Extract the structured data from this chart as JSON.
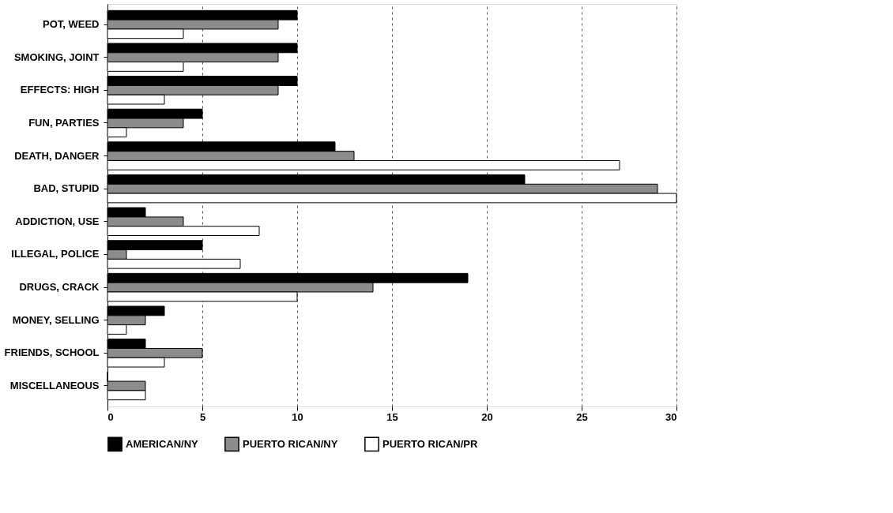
{
  "chart_data": {
    "type": "bar",
    "orientation": "horizontal",
    "categories": [
      "POT, WEED",
      "SMOKING, JOINT",
      "EFFECTS: HIGH",
      "FUN, PARTIES",
      "DEATH, DANGER",
      "BAD, STUPID",
      "ADDICTION, USE",
      "ILLEGAL, POLICE",
      "DRUGS, CRACK",
      "MONEY, SELLING",
      "FRIENDS, SCHOOL",
      "MISCELLANEOUS"
    ],
    "series": [
      {
        "name": "AMERICAN/NY",
        "color": "#000000",
        "values": [
          10,
          10,
          10,
          5,
          12,
          22,
          2,
          5,
          19,
          3,
          2,
          0
        ]
      },
      {
        "name": "PUERTO RICAN/NY",
        "color": "#8c8c8c",
        "values": [
          9,
          9,
          9,
          4,
          13,
          29,
          4,
          1,
          14,
          2,
          5,
          2
        ]
      },
      {
        "name": "PUERTO RICAN/PR",
        "color": "#ffffff",
        "values": [
          4,
          4,
          3,
          1,
          27,
          30,
          8,
          7,
          10,
          1,
          3,
          2
        ]
      }
    ],
    "xlim": [
      0,
      30
    ],
    "xticks": [
      0,
      5,
      10,
      15,
      20,
      25,
      30
    ],
    "grid": "x",
    "legend": "bottom"
  }
}
